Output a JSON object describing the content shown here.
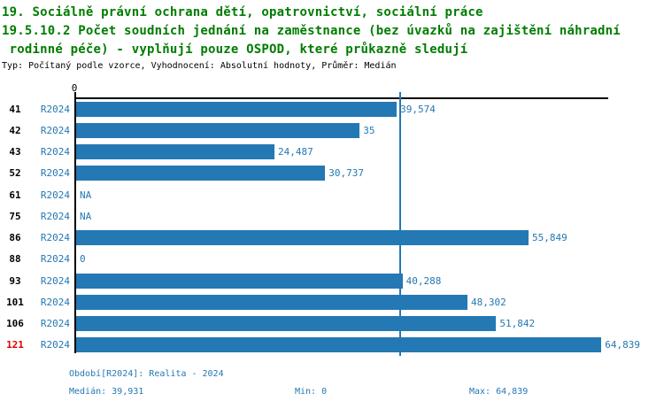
{
  "title": {
    "line1": "19. Sociálně právní ochrana dětí, opatrovnictví, sociální práce",
    "line2": "19.5.10.2 Počet soudních jednání na zaměstnance (bez úvazků na zajištění náhradní",
    "line3": " rodinné péče) - vyplňují pouze OSPOD, které průkazně sledují",
    "subtitle": "Typ: Počítaný podle vzorce, Vyhodnocení: Absolutní hodnoty, Průměr: Medián"
  },
  "colors": {
    "title_green": "#007c00",
    "bar_blue": "#2478b4",
    "label_blue": "#2478b4",
    "highlight_red": "#dd0000",
    "axis_black": "#000000"
  },
  "chart_data": {
    "type": "bar",
    "orientation": "horizontal",
    "series_label": "R2024",
    "axis_zero_label": "0",
    "xlim": [
      0,
      65.7
    ],
    "median_value": 39.931,
    "grid": false,
    "rows": [
      {
        "id": "41",
        "value": 39.574,
        "label": "39,574",
        "highlight": false
      },
      {
        "id": "42",
        "value": 35,
        "label": "35",
        "highlight": false
      },
      {
        "id": "43",
        "value": 24.487,
        "label": "24,487",
        "highlight": false
      },
      {
        "id": "52",
        "value": 30.737,
        "label": "30,737",
        "highlight": false
      },
      {
        "id": "61",
        "value": null,
        "label": "NA",
        "highlight": false
      },
      {
        "id": "75",
        "value": null,
        "label": "NA",
        "highlight": false
      },
      {
        "id": "86",
        "value": 55.849,
        "label": "55,849",
        "highlight": false
      },
      {
        "id": "88",
        "value": 0,
        "label": "0",
        "highlight": false
      },
      {
        "id": "93",
        "value": 40.288,
        "label": "40,288",
        "highlight": false
      },
      {
        "id": "101",
        "value": 48.302,
        "label": "48,302",
        "highlight": false
      },
      {
        "id": "106",
        "value": 51.842,
        "label": "51,842",
        "highlight": false
      },
      {
        "id": "121",
        "value": 64.839,
        "label": "64,839",
        "highlight": true
      }
    ]
  },
  "footer": {
    "period": "Období[R2024]: Realita - 2024",
    "median": "Medián: 39,931",
    "min": "Min: 0",
    "max": "Max: 64,839"
  }
}
